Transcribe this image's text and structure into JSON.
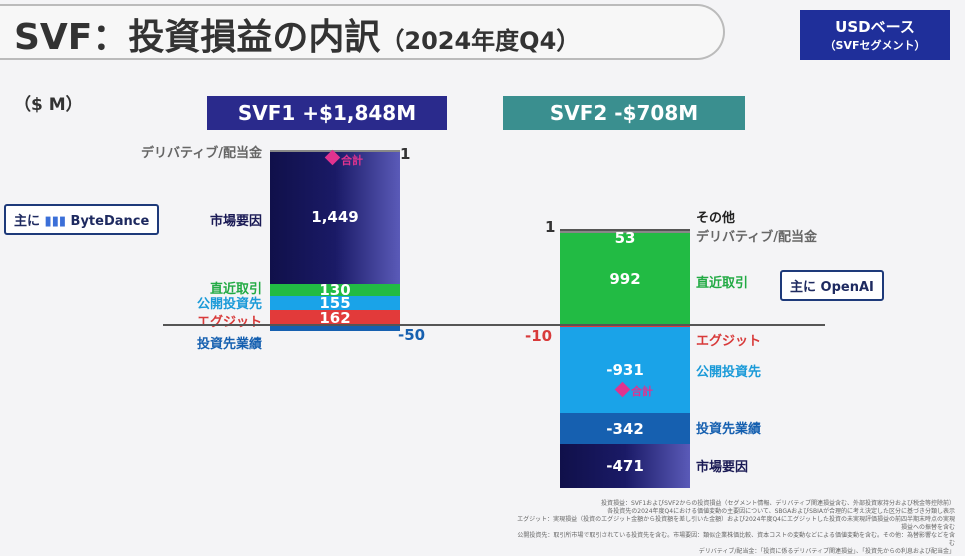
{
  "title": {
    "main": "SVF：投資損益の内訳",
    "sub": "（2024年度Q4）"
  },
  "badge": {
    "line1": "USDベース",
    "line2": "（SVFセグメント）"
  },
  "unit": "（$ M）",
  "callouts": {
    "svf1": {
      "prefix": "主に",
      "name": "ByteDance"
    },
    "svf2": {
      "prefix": "主に",
      "name": "OpenAI"
    }
  },
  "total_label": "合計",
  "footnote": [
    "投資損益：SVF1およびSVF2からの投資損益（セグメント情報、デリバティブ関連損益含む、外部投資家持分および税金等控除前）",
    "各投資先の2024年度Q4における価値変動の主要因について、SBGAおよびSBIAが合理的に考え決定した区分に基づき分類し表示",
    "エグジット：実現損益（投資のエグジット金額から投資額を差し引いた金額）および2024年度Q4にエグジットした投資の未実現評価損益の前四半期末時点の実現損益への振替を含む",
    "公開投資先：取引所市場で取引されている投資先を含む。市場要因：類似企業株価比較、資本コストの変動などによる価値変動を含む。その他：為替影響などを含む",
    "デリバティブ/配当金：「投資に係るデリバティブ関連損益」、「投資先からの利息および配当金」"
  ],
  "colors": {
    "market": "#1a1a66",
    "recent": "#22bb44",
    "public": "#1aa3e8",
    "exit": "#e23a3a",
    "performance": "#1660b0",
    "deriv": "#888888",
    "other": "#555555",
    "total": "#e0338f"
  },
  "chart_data": {
    "type": "waterfall-stacked-bar",
    "unit": "$ M",
    "series": [
      {
        "name": "SVF1 +$1,848M",
        "total": 1848,
        "positive": [
          {
            "label": "エグジット",
            "value": 162,
            "key": "exit"
          },
          {
            "label": "公開投資先",
            "value": 155,
            "key": "public"
          },
          {
            "label": "直近取引",
            "value": 130,
            "key": "recent"
          },
          {
            "label": "市場要因",
            "value": 1449,
            "key": "market"
          },
          {
            "label": "デリバティブ/配当金",
            "value": 1,
            "key": "deriv"
          }
        ],
        "negative": [
          {
            "label": "投資先業績",
            "value": -50,
            "key": "performance"
          }
        ]
      },
      {
        "name": "SVF2 -$708M",
        "total": -708,
        "positive": [
          {
            "label": "直近取引",
            "value": 992,
            "key": "recent"
          },
          {
            "label": "デリバティブ/配当金",
            "value": 53,
            "key": "deriv"
          },
          {
            "label": "その他",
            "value": 1,
            "key": "other"
          }
        ],
        "negative": [
          {
            "label": "エグジット",
            "value": -10,
            "key": "exit"
          },
          {
            "label": "公開投資先",
            "value": -931,
            "key": "public"
          },
          {
            "label": "投資先業績",
            "value": -342,
            "key": "performance"
          },
          {
            "label": "市場要因",
            "value": -471,
            "key": "market"
          }
        ]
      }
    ]
  }
}
